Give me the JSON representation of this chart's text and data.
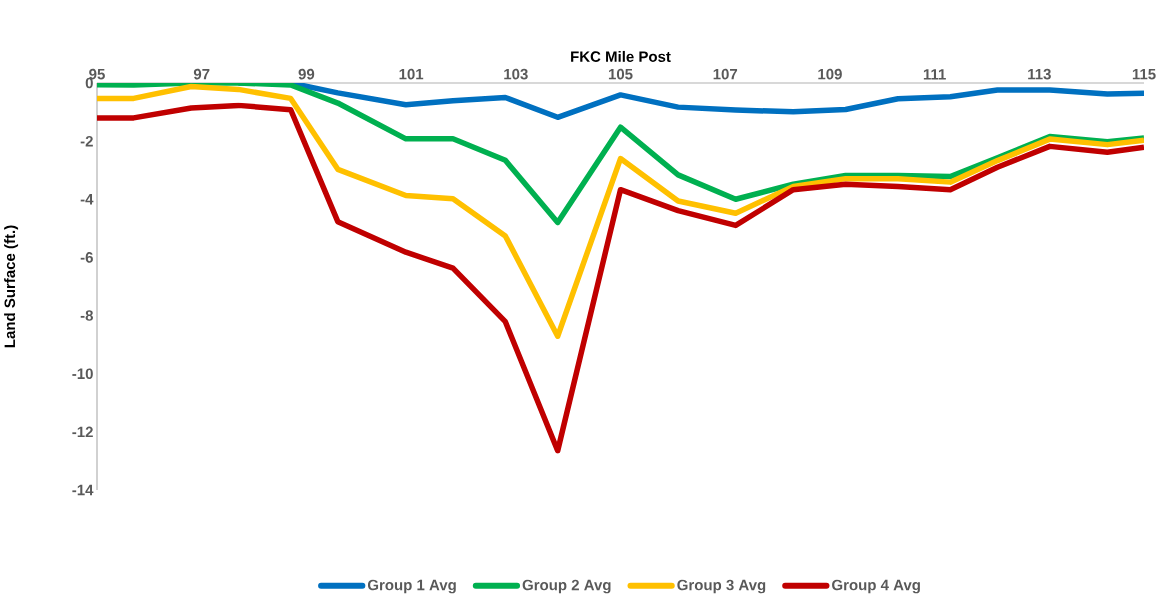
{
  "chart_data": {
    "type": "line",
    "xlabel": "FKC Mile Post",
    "ylabel": "Land Surface  (ft.)",
    "x": [
      95,
      95.7,
      96.8,
      97.7,
      98.7,
      99.6,
      100.9,
      101.8,
      102.8,
      103.8,
      105,
      106.1,
      107.2,
      108.3,
      109.3,
      110.3,
      111.3,
      112.2,
      113.2,
      114.3,
      115
    ],
    "series": [
      {
        "name": "Group 1 Avg",
        "color": "#0070c0",
        "values": [
          null,
          null,
          null,
          0,
          0,
          -0.34,
          -0.75,
          -0.61,
          -0.5,
          -1.18,
          -0.41,
          -0.83,
          -0.93,
          -0.99,
          -0.91,
          -0.54,
          -0.47,
          -0.24,
          -0.24,
          -0.38,
          -0.35
        ]
      },
      {
        "name": "Group 2 Avg",
        "color": "#00b050",
        "values": [
          -0.06,
          -0.07,
          0,
          0,
          -0.07,
          -0.69,
          -1.92,
          -1.92,
          -2.66,
          -4.8,
          -1.52,
          -3.16,
          -4.0,
          -3.48,
          -3.18,
          -3.18,
          -3.22,
          -2.57,
          -1.84,
          -2.02,
          -1.89
        ]
      },
      {
        "name": "Group 3 Avg",
        "color": "#ffc000",
        "values": [
          -0.53,
          -0.53,
          -0.12,
          -0.22,
          -0.53,
          -2.97,
          -3.87,
          -3.98,
          -5.26,
          -8.71,
          -2.6,
          -4.06,
          -4.48,
          -3.56,
          -3.29,
          -3.29,
          -3.41,
          -2.67,
          -1.93,
          -2.12,
          -1.97
        ]
      },
      {
        "name": "Group 4 Avg",
        "color": "#c00000",
        "values": [
          -1.2,
          -1.2,
          -0.86,
          -0.77,
          -0.92,
          -4.77,
          -5.82,
          -6.37,
          -8.21,
          -12.65,
          -3.67,
          -4.39,
          -4.9,
          -3.67,
          -3.48,
          -3.56,
          -3.67,
          -2.9,
          -2.18,
          -2.38,
          -2.21
        ]
      }
    ],
    "xlim": [
      95,
      115
    ],
    "xticks": [
      95,
      97,
      99,
      101,
      103,
      105,
      107,
      109,
      111,
      113,
      115
    ],
    "ylim": [
      -14,
      0
    ],
    "yticks": [
      0,
      -2,
      -4,
      -6,
      -8,
      -10,
      -12,
      -14
    ],
    "grid": false,
    "legend": "bottom",
    "marker": "none",
    "line_style": "solid"
  }
}
